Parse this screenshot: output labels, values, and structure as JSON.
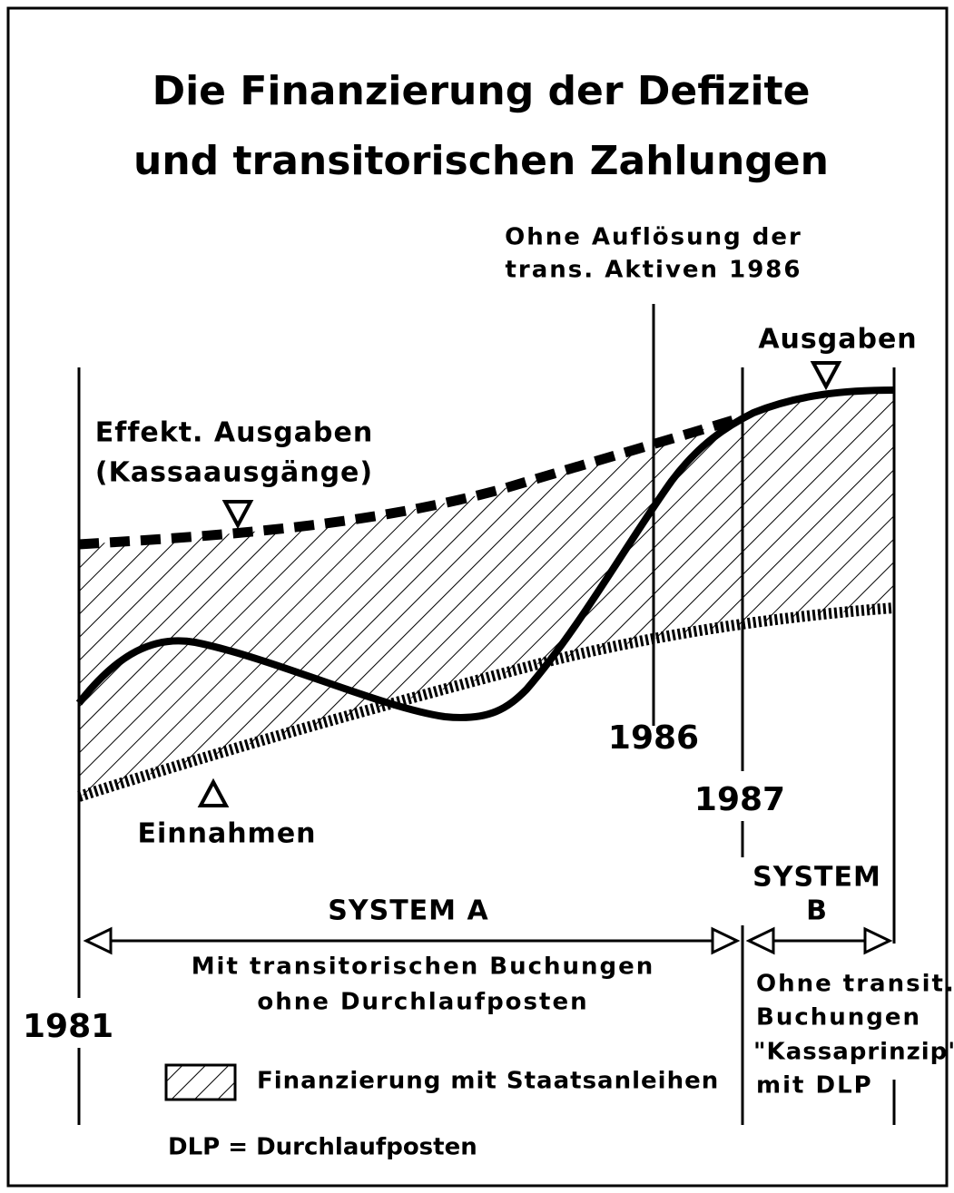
{
  "title": [
    "Die Finanzierung der Defizite",
    "und transitorischen Zahlungen"
  ],
  "annotation_1986_note": [
    "Ohne Auflösung der",
    "trans. Aktiven 1986"
  ],
  "labels": {
    "ausgaben": "Ausgaben",
    "effekt": [
      "Effekt. Ausgaben",
      "(Kassaausgänge)"
    ],
    "einnahmen": "Einnahmen"
  },
  "years": {
    "y1981": "1981",
    "y1986": "1986",
    "y1987": "1987"
  },
  "system_a": {
    "title": "SYSTEM A",
    "description": [
      "Mit transitorischen Buchungen",
      "ohne Durchlaufposten"
    ]
  },
  "system_b": {
    "title": [
      "SYSTEM",
      "B"
    ],
    "description": [
      "Ohne transit.",
      "Buchungen",
      "\"Kassaprinzip\"",
      "mit DLP"
    ]
  },
  "legend": "Finanzierung mit Staatsanleihen",
  "footnote": "DLP = Durchlaufposten"
}
